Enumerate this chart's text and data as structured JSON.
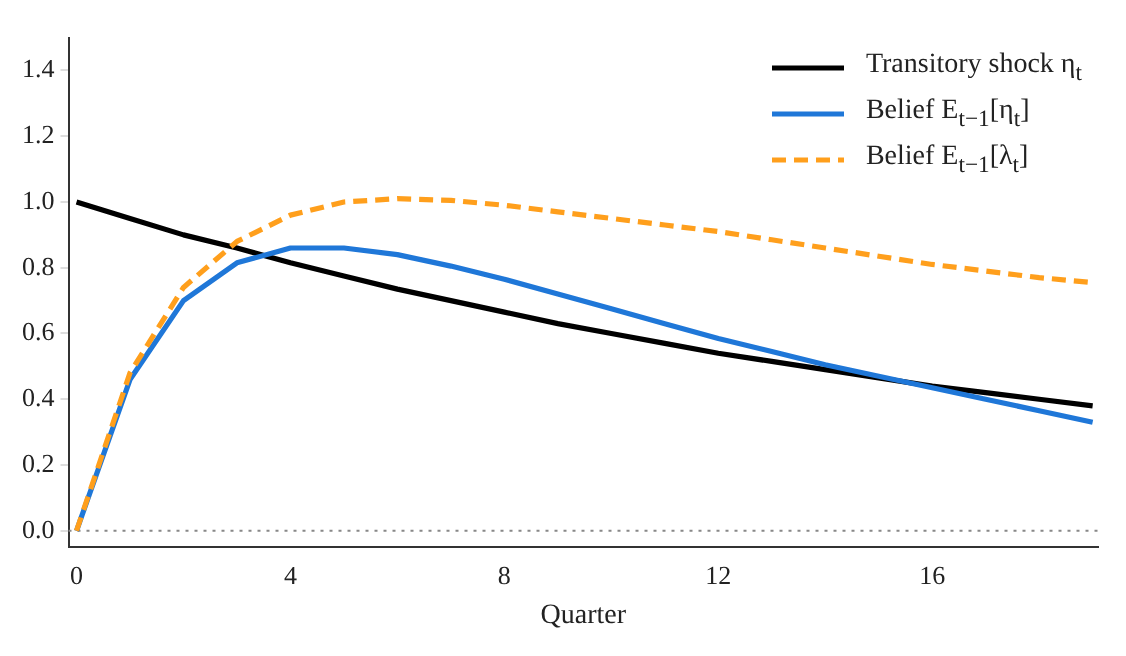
{
  "chart_data": {
    "type": "line",
    "xlabel": "Quarter",
    "x": [
      0,
      1,
      2,
      3,
      4,
      5,
      6,
      7,
      8,
      9,
      10,
      11,
      12,
      13,
      14,
      15,
      16,
      17,
      18,
      19
    ],
    "series": [
      {
        "name": "Transitory shock η$_{t}$",
        "color": "#000000",
        "line_style": "solid",
        "values": [
          1.0,
          0.95,
          0.9,
          0.86,
          0.815,
          0.775,
          0.735,
          0.7,
          0.665,
          0.63,
          0.6,
          0.57,
          0.54,
          0.515,
          0.49,
          0.465,
          0.44,
          0.42,
          0.4,
          0.38
        ]
      },
      {
        "name": "Belief E$_{t−1}$[η$_{t}$]",
        "color": "#1f77d8",
        "line_style": "solid",
        "values": [
          0,
          0.46,
          0.7,
          0.815,
          0.86,
          0.86,
          0.84,
          0.805,
          0.765,
          0.72,
          0.675,
          0.63,
          0.585,
          0.545,
          0.505,
          0.47,
          0.435,
          0.4,
          0.365,
          0.33
        ]
      },
      {
        "name": "Belief E$_{t−1}$[λ$_{t}$]",
        "color": "#ff9f1c",
        "line_style": "dashed",
        "values": [
          0,
          0.48,
          0.74,
          0.88,
          0.96,
          1.0,
          1.01,
          1.005,
          0.99,
          0.97,
          0.95,
          0.93,
          0.91,
          0.885,
          0.86,
          0.835,
          0.81,
          0.79,
          0.77,
          0.755
        ]
      }
    ],
    "xlim": [
      -0.15,
      19.1
    ],
    "ylim": [
      -0.05,
      1.5
    ],
    "xticks": [
      0,
      4,
      8,
      12,
      16
    ],
    "yticks": [
      {
        "value": 0,
        "label": "0.0"
      },
      0.2,
      0.4,
      0.6,
      0.8,
      {
        "value": 1,
        "label": "1.0"
      },
      1.2,
      1.4
    ],
    "ref_lines": [
      {
        "axis": "y",
        "value": 0,
        "color": "#888888",
        "line_style": "dotted"
      }
    ],
    "grid": false,
    "legend": "top right",
    "marker": "none"
  }
}
